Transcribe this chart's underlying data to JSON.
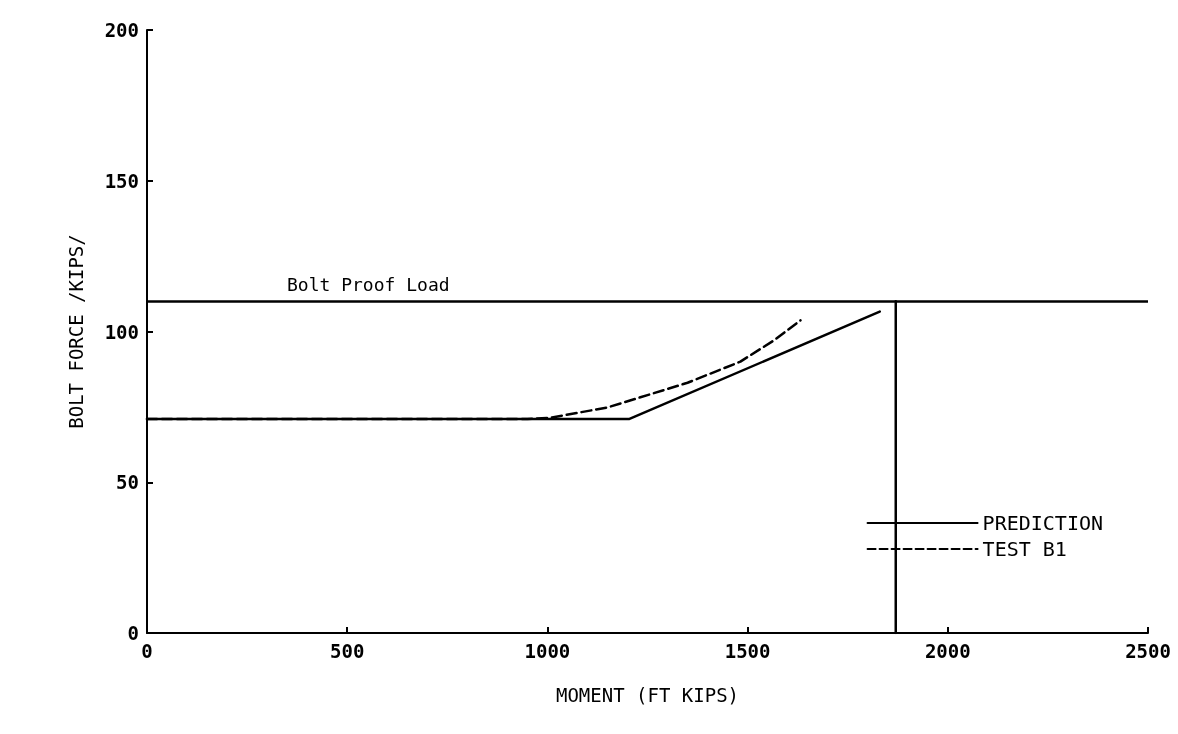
{
  "chart_data": {
    "type": "line",
    "xlabel": "MOMENT (FT KIPS)",
    "ylabel": "BOLT FORCE /KIPS/",
    "xlim": [
      0,
      2500
    ],
    "xticks": [
      0,
      500,
      1000,
      1500,
      2000,
      2500
    ],
    "ylim": [
      0,
      200
    ],
    "yticks": [
      0,
      50,
      100,
      150,
      200
    ],
    "grid": false,
    "legend": "bottom right",
    "marker": "none",
    "series": [
      {
        "name": "PREDICTION",
        "color": "#000000",
        "line_style": "solid",
        "x": [
          0,
          1205,
          1830
        ],
        "values": [
          71,
          71,
          106.6
        ]
      },
      {
        "name": "TEST B1",
        "color": "#000000",
        "line_style": "dashed",
        "x": [
          0,
          950,
          1007,
          1150,
          1350,
          1482,
          1565,
          1632
        ],
        "values": [
          71,
          71,
          71.4,
          74.8,
          83,
          90,
          97,
          103.7
        ]
      },
      {
        "color": "#000000",
        "line_style": "solid",
        "x": [
          1870,
          1870
        ],
        "values": [
          0,
          110
        ]
      }
    ],
    "ref_lines": [
      {
        "axis": "y",
        "value": 110,
        "label": "Bolt Proof Load"
      }
    ]
  }
}
